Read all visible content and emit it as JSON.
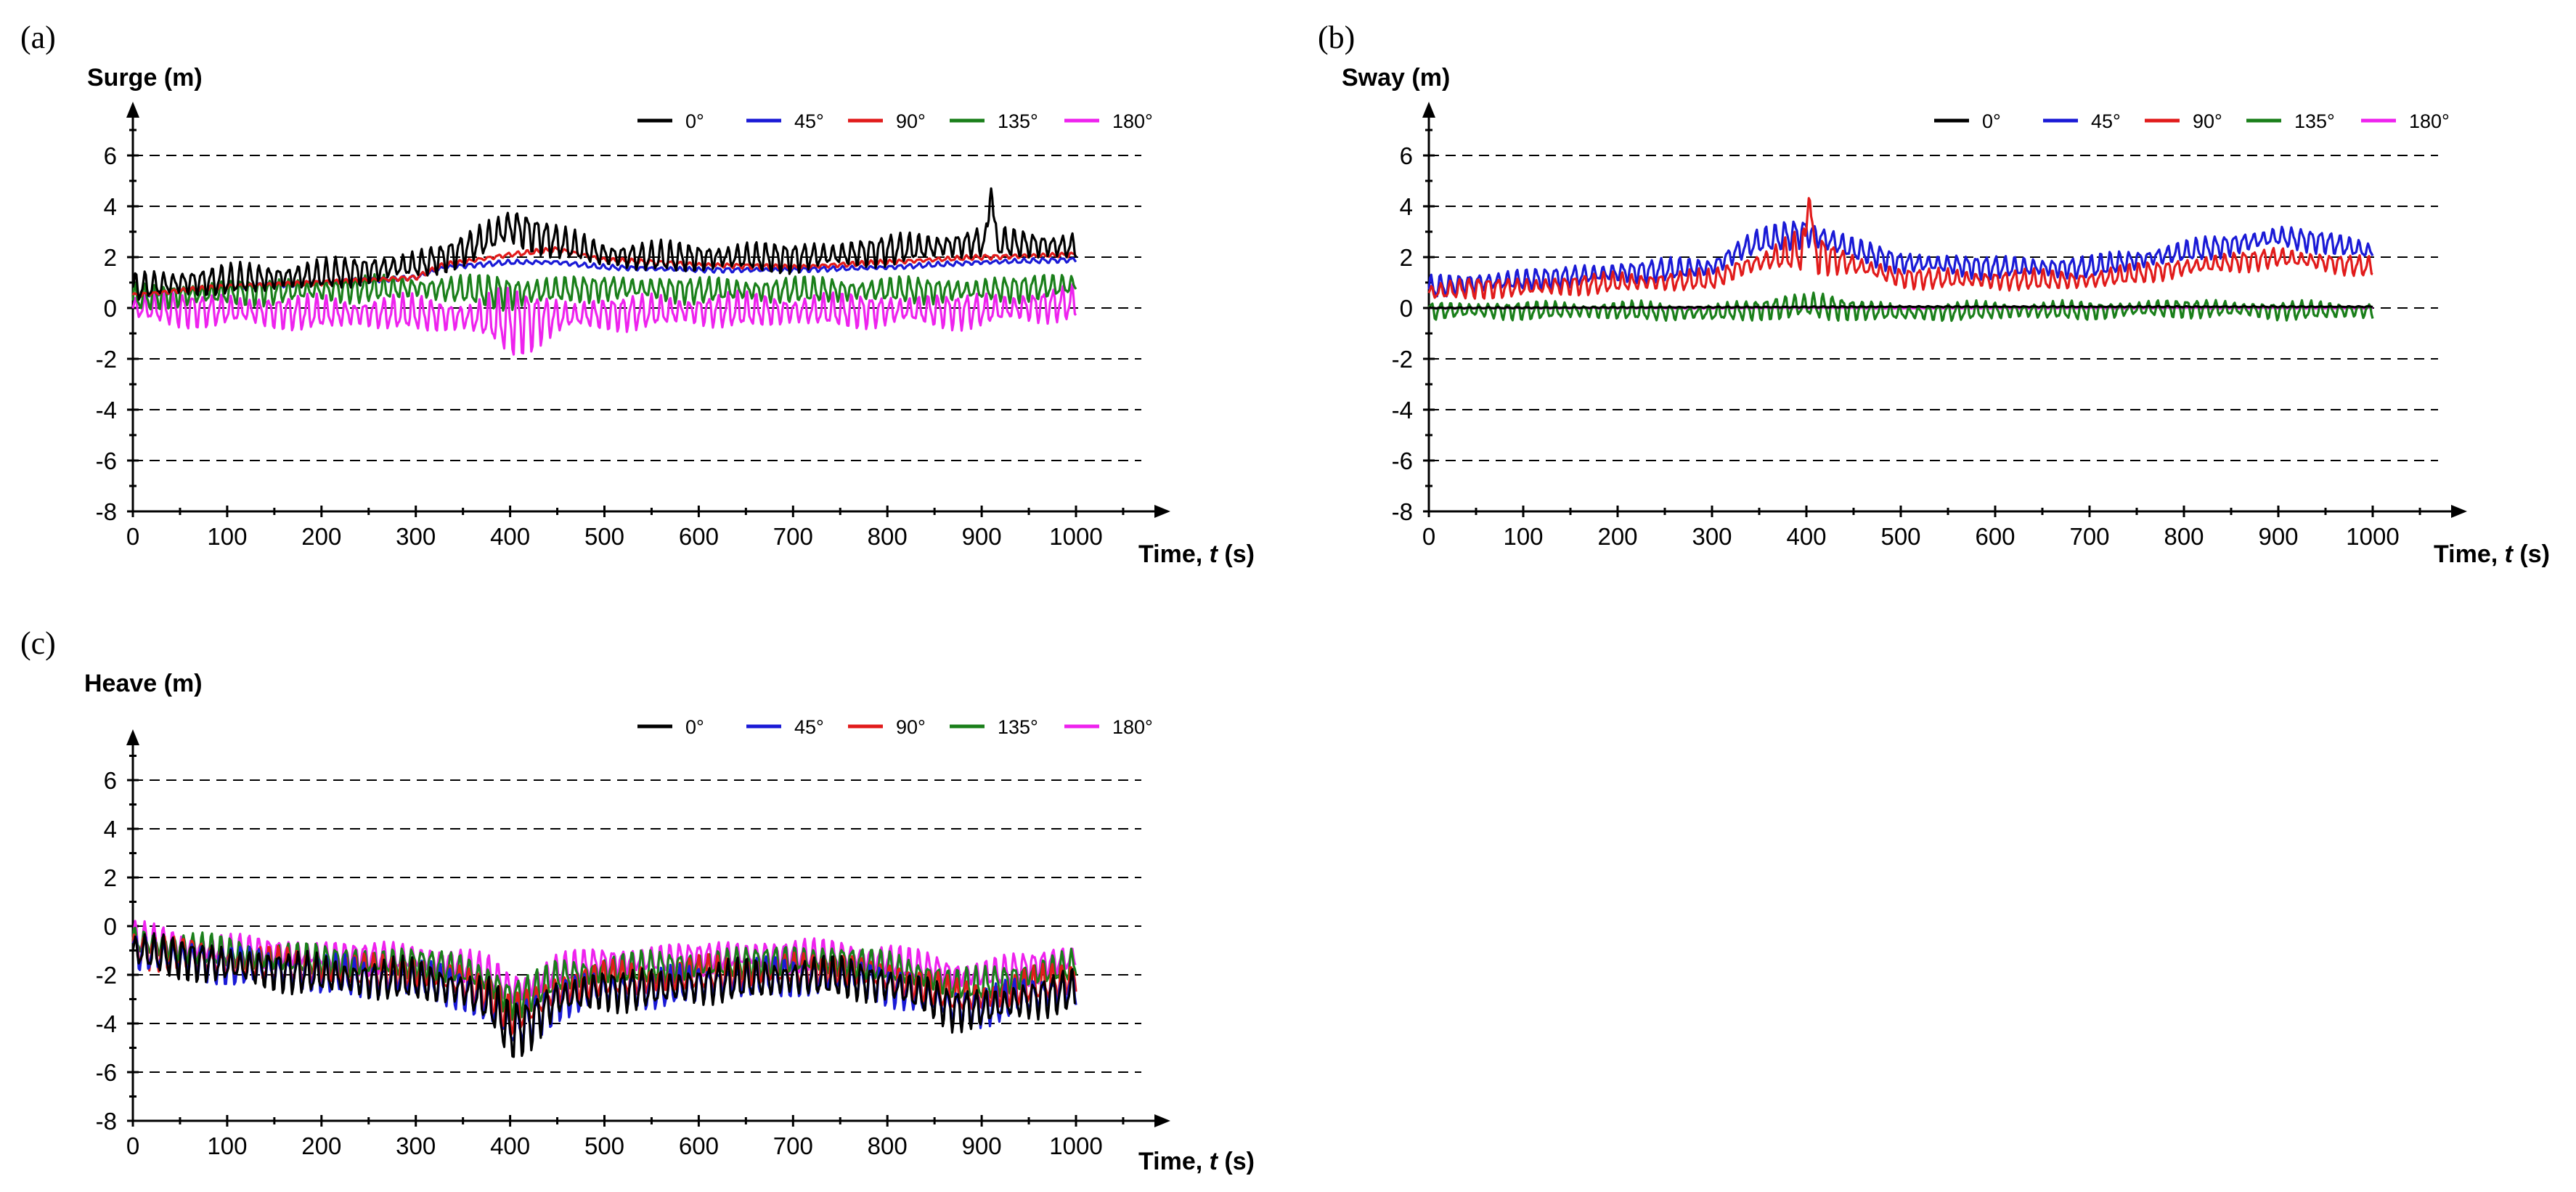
{
  "chart_data": [
    {
      "panel_label": "(a)",
      "type": "line",
      "title": "",
      "ylabel": "Surge (m)",
      "xlabel_prefix": "Time, ",
      "xlabel_var": "t",
      "xlabel_suffix": " (s)",
      "xlim": [
        0,
        1100
      ],
      "ylim": [
        -8,
        7
      ],
      "xticks": [
        "0",
        "100",
        "200",
        "300",
        "400",
        "500",
        "600",
        "700",
        "800",
        "900",
        "1000"
      ],
      "yticks": [
        "6",
        "4",
        "2",
        "0",
        "-2",
        "-4",
        "-6",
        "-8"
      ],
      "gridlines_y": [
        6,
        4,
        2,
        0,
        -2,
        -4,
        -6
      ],
      "grid": "horizontal dashed",
      "legend_position": "top-right",
      "series": [
        {
          "name": "0°",
          "color": "#000000",
          "stroke_order": 4,
          "anchors_t": [
            0,
            50,
            100,
            150,
            200,
            250,
            300,
            330,
            350,
            380,
            400,
            420,
            450,
            500,
            550,
            600,
            650,
            700,
            750,
            800,
            850,
            900,
            950,
            1000
          ],
          "anchors_v": [
            0.8,
            1.0,
            1.1,
            1.2,
            1.3,
            1.5,
            1.7,
            2.0,
            2.3,
            2.8,
            3.2,
            3.0,
            2.6,
            2.1,
            2.0,
            2.0,
            2.0,
            2.0,
            2.1,
            2.3,
            2.4,
            2.6,
            2.5,
            2.4
          ],
          "amplitude": [
            0.6,
            0.8
          ],
          "amp_peak_t": 400,
          "amp_peak": 1.1,
          "spike_t": 910,
          "spike_v": 4.7
        },
        {
          "name": "45°",
          "color": "#1a1ad6",
          "stroke_order": 0,
          "anchors_t": [
            0,
            100,
            200,
            300,
            330,
            400,
            450,
            500,
            600,
            700,
            800,
            900,
            1000
          ],
          "anchors_v": [
            0.5,
            0.8,
            1.0,
            1.2,
            1.6,
            1.8,
            1.8,
            1.6,
            1.5,
            1.5,
            1.6,
            1.8,
            1.9
          ],
          "amplitude": [
            0.08,
            0.15
          ]
        },
        {
          "name": "90°",
          "color": "#e11b1b",
          "stroke_order": 3,
          "anchors_t": [
            0,
            100,
            200,
            300,
            330,
            400,
            450,
            500,
            600,
            700,
            800,
            900,
            1000
          ],
          "anchors_v": [
            0.5,
            0.85,
            1.0,
            1.2,
            1.7,
            2.1,
            2.3,
            1.9,
            1.7,
            1.6,
            1.8,
            2.0,
            2.1
          ],
          "amplitude": [
            0.08,
            0.15
          ]
        },
        {
          "name": "135°",
          "color": "#1a7f1a",
          "stroke_order": 2,
          "anchors_t": [
            0,
            100,
            200,
            300,
            400,
            500,
            600,
            700,
            800,
            900,
            1000
          ],
          "anchors_v": [
            0.4,
            0.6,
            0.7,
            0.8,
            0.6,
            0.8,
            0.7,
            0.7,
            0.7,
            0.7,
            0.9
          ],
          "amplitude": [
            0.5,
            0.7
          ],
          "amp_peak_t": 400,
          "amp_peak": 0.9
        },
        {
          "name": "180°",
          "color": "#ee22ee",
          "stroke_order": 1,
          "anchors_t": [
            0,
            100,
            200,
            300,
            400,
            500,
            600,
            700,
            800,
            900,
            1000
          ],
          "anchors_v": [
            0.0,
            -0.1,
            -0.2,
            -0.2,
            -0.5,
            -0.2,
            -0.1,
            -0.1,
            -0.1,
            -0.1,
            0.2
          ],
          "amplitude": [
            0.7,
            0.9
          ],
          "amp_peak_t": 405,
          "amp_peak": 1.6
        }
      ]
    },
    {
      "panel_label": "(b)",
      "type": "line",
      "title": "",
      "ylabel": "Sway (m)",
      "xlabel_prefix": "Time, ",
      "xlabel_var": "t",
      "xlabel_suffix": " (s)",
      "xlim": [
        0,
        1100
      ],
      "ylim": [
        -8,
        7
      ],
      "xticks": [
        "0",
        "100",
        "200",
        "300",
        "400",
        "500",
        "600",
        "700",
        "800",
        "900",
        "1000"
      ],
      "yticks": [
        "6",
        "4",
        "2",
        "0",
        "-2",
        "-4",
        "-6",
        "-8"
      ],
      "gridlines_y": [
        6,
        4,
        2,
        0,
        -2,
        -4,
        -6
      ],
      "grid": "horizontal dashed",
      "legend_position": "top-right",
      "series": [
        {
          "name": "0°",
          "color": "#000000",
          "stroke_order": 4,
          "anchors_t": [
            0,
            500,
            1000
          ],
          "anchors_v": [
            0.0,
            0.05,
            0.05
          ],
          "amplitude": [
            0.02,
            0.03
          ]
        },
        {
          "name": "45°",
          "color": "#1a1ad6",
          "stroke_order": 2,
          "anchors_t": [
            0,
            50,
            100,
            200,
            300,
            330,
            350,
            400,
            450,
            500,
            550,
            600,
            700,
            800,
            850,
            900,
            950,
            1000
          ],
          "anchors_v": [
            0.8,
            1.0,
            1.1,
            1.4,
            1.6,
            2.3,
            2.6,
            3.0,
            2.3,
            1.8,
            1.7,
            1.6,
            1.6,
            2.2,
            2.5,
            2.8,
            2.6,
            2.2
          ],
          "amplitude": [
            0.45,
            0.6
          ],
          "amp_peak_t": 400,
          "amp_peak": 0.8
        },
        {
          "name": "90°",
          "color": "#e11b1b",
          "stroke_order": 3,
          "anchors_t": [
            0,
            50,
            100,
            200,
            300,
            330,
            400,
            450,
            500,
            600,
            700,
            800,
            900,
            1000
          ],
          "anchors_v": [
            0.6,
            0.8,
            0.8,
            1.0,
            1.1,
            1.6,
            2.3,
            1.7,
            1.2,
            1.1,
            1.1,
            1.6,
            2.0,
            1.6
          ],
          "amplitude": [
            0.4,
            0.55
          ],
          "amp_peak_t": 400,
          "amp_peak": 1.0,
          "spike_t": 403,
          "spike_v": 4.4
        },
        {
          "name": "135°",
          "color": "#1a7f1a",
          "stroke_order": 1,
          "anchors_t": [
            0,
            100,
            200,
            300,
            400,
            500,
            600,
            700,
            800,
            900,
            1000
          ],
          "anchors_v": [
            -0.1,
            -0.1,
            -0.1,
            -0.2,
            0.1,
            -0.2,
            -0.1,
            -0.1,
            0.0,
            -0.1,
            -0.1
          ],
          "amplitude": [
            0.35,
            0.5
          ],
          "amp_peak_t": 400,
          "amp_peak": 0.8
        },
        {
          "name": "180°",
          "color": "#ee22ee",
          "stroke_order": 0,
          "anchors_t": [
            0,
            500,
            1000
          ],
          "anchors_v": [
            0.0,
            0.0,
            0.0
          ],
          "amplitude": [
            0.02,
            0.03
          ]
        }
      ]
    },
    {
      "panel_label": "(c)",
      "type": "line",
      "title": "",
      "ylabel": "Heave (m)",
      "xlabel_prefix": "Time, ",
      "xlabel_var": "t",
      "xlabel_suffix": " (s)",
      "xlim": [
        0,
        1100
      ],
      "ylim": [
        -8,
        7
      ],
      "xticks": [
        "0",
        "100",
        "200",
        "300",
        "400",
        "500",
        "600",
        "700",
        "800",
        "900",
        "1000"
      ],
      "yticks": [
        "6",
        "4",
        "2",
        "0",
        "-2",
        "-4",
        "-6",
        "-8"
      ],
      "gridlines_y": [
        6,
        4,
        2,
        0,
        -2,
        -4,
        -6
      ],
      "grid": "horizontal dashed",
      "legend_position": "top-right",
      "series": [
        {
          "name": "0°",
          "color": "#000000",
          "stroke_order": 4,
          "anchors_t": [
            0,
            50,
            100,
            150,
            200,
            250,
            300,
            350,
            380,
            400,
            420,
            450,
            500,
            550,
            600,
            650,
            700,
            750,
            800,
            850,
            870,
            900,
            950,
            1000
          ],
          "anchors_v": [
            -1.0,
            -1.3,
            -1.6,
            -1.8,
            -2.0,
            -2.2,
            -2.2,
            -2.6,
            -3.2,
            -4.3,
            -4.0,
            -3.0,
            -2.6,
            -2.6,
            -2.4,
            -2.2,
            -2.1,
            -2.1,
            -2.4,
            -3.0,
            -3.4,
            -3.4,
            -3.0,
            -2.6
          ],
          "amplitude": [
            0.9,
            1.1
          ],
          "amp_peak_t": 405,
          "amp_peak": 1.4
        },
        {
          "name": "45°",
          "color": "#1a1ad6",
          "stroke_order": 3,
          "anchors_t": [
            0,
            50,
            100,
            150,
            200,
            250,
            300,
            350,
            380,
            400,
            420,
            450,
            500,
            550,
            600,
            650,
            700,
            750,
            800,
            850,
            870,
            900,
            950,
            1000
          ],
          "anchors_v": [
            -1.0,
            -1.3,
            -1.6,
            -1.8,
            -2.0,
            -2.2,
            -2.2,
            -2.6,
            -3.2,
            -4.2,
            -3.9,
            -3.0,
            -2.6,
            -2.6,
            -2.4,
            -2.2,
            -2.1,
            -2.1,
            -2.4,
            -3.0,
            -3.3,
            -3.3,
            -2.9,
            -2.5
          ],
          "amplitude": [
            0.85,
            1.05
          ],
          "amp_peak_t": 405,
          "amp_peak": 1.3
        },
        {
          "name": "90°",
          "color": "#e11b1b",
          "stroke_order": 2,
          "anchors_t": [
            0,
            50,
            100,
            150,
            200,
            250,
            300,
            350,
            380,
            400,
            420,
            450,
            500,
            550,
            600,
            650,
            700,
            750,
            800,
            850,
            870,
            900,
            950,
            1000
          ],
          "anchors_v": [
            -0.9,
            -1.2,
            -1.5,
            -1.6,
            -1.8,
            -1.9,
            -1.9,
            -2.3,
            -2.8,
            -3.7,
            -3.4,
            -2.6,
            -2.2,
            -2.2,
            -2.0,
            -1.9,
            -1.8,
            -1.8,
            -2.1,
            -2.6,
            -2.9,
            -2.9,
            -2.5,
            -2.1
          ],
          "amplitude": [
            0.75,
            0.95
          ],
          "amp_peak_t": 405,
          "amp_peak": 1.1
        },
        {
          "name": "135°",
          "color": "#1a7f1a",
          "stroke_order": 1,
          "anchors_t": [
            0,
            50,
            100,
            150,
            200,
            250,
            300,
            350,
            380,
            400,
            420,
            450,
            500,
            550,
            600,
            650,
            700,
            750,
            800,
            850,
            870,
            900,
            950,
            1000
          ],
          "anchors_v": [
            -0.6,
            -0.9,
            -1.1,
            -1.3,
            -1.4,
            -1.5,
            -1.5,
            -1.8,
            -2.3,
            -3.0,
            -2.8,
            -2.1,
            -1.8,
            -1.7,
            -1.6,
            -1.5,
            -1.4,
            -1.4,
            -1.7,
            -2.1,
            -2.4,
            -2.4,
            -2.0,
            -1.6
          ],
          "amplitude": [
            0.7,
            0.85
          ],
          "amp_peak_t": 405,
          "amp_peak": 1.0
        },
        {
          "name": "180°",
          "color": "#ee22ee",
          "stroke_order": 0,
          "anchors_t": [
            0,
            50,
            100,
            150,
            200,
            250,
            300,
            350,
            380,
            400,
            420,
            450,
            500,
            550,
            600,
            650,
            700,
            750,
            800,
            850,
            870,
            900,
            950,
            1000
          ],
          "anchors_v": [
            -0.5,
            -0.8,
            -1.0,
            -1.1,
            -1.2,
            -1.3,
            -1.3,
            -1.6,
            -2.0,
            -2.6,
            -2.4,
            -1.8,
            -1.5,
            -1.4,
            -1.3,
            -1.2,
            -1.2,
            -1.2,
            -1.4,
            -1.8,
            -2.0,
            -2.0,
            -1.7,
            -1.3
          ],
          "amplitude": [
            0.7,
            0.85
          ],
          "amp_peak_t": 405,
          "amp_peak": 0.9
        }
      ]
    }
  ]
}
